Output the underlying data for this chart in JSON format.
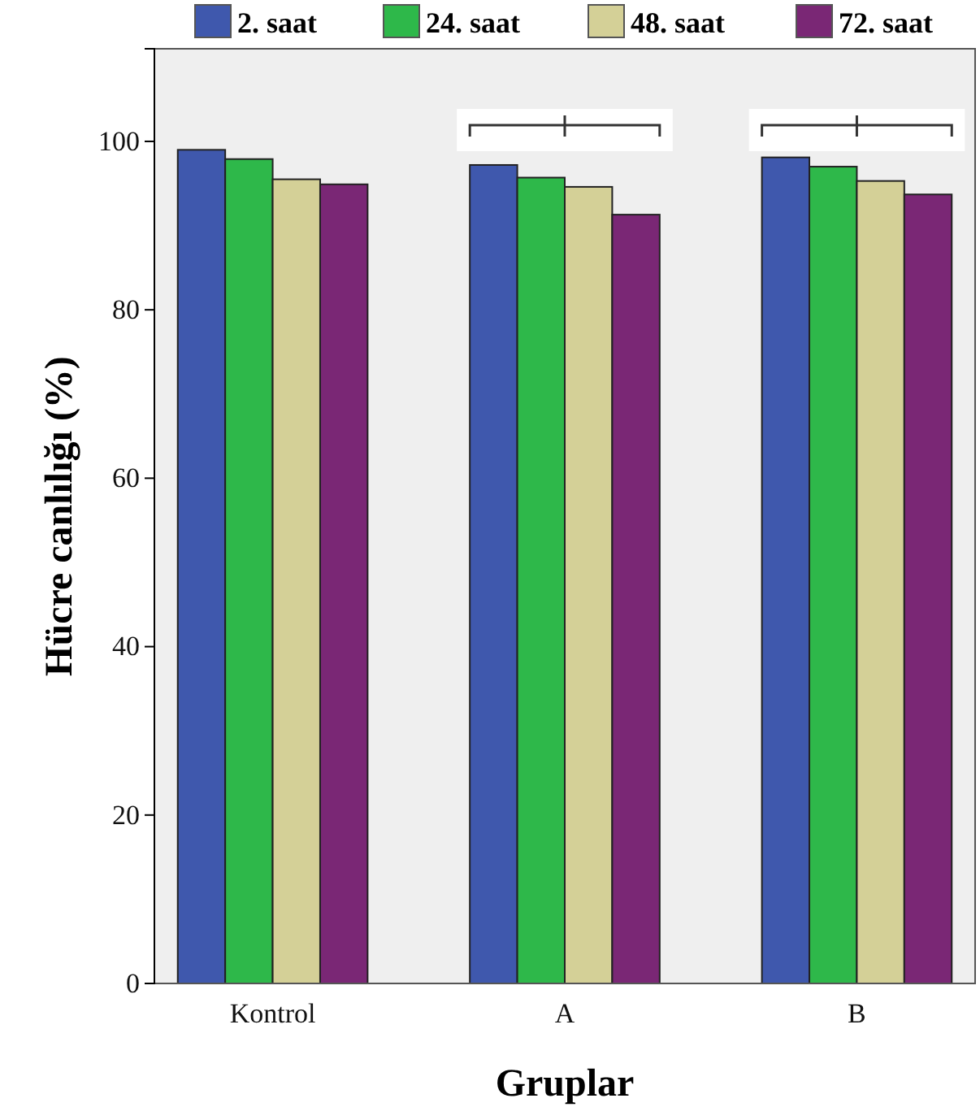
{
  "chart_data": {
    "type": "bar",
    "xlabel": "Gruplar",
    "ylabel": "Hücre canlılığı (%)",
    "categories": [
      "Kontrol",
      "A",
      "B"
    ],
    "series": [
      {
        "name": "2. saat",
        "color": "#3f58ad",
        "values": [
          99.0,
          97.2,
          98.1
        ]
      },
      {
        "name": "24. saat",
        "color": "#2eb84a",
        "values": [
          97.9,
          95.7,
          97.0
        ]
      },
      {
        "name": "48. saat",
        "color": "#d4d097",
        "values": [
          95.5,
          94.6,
          95.3
        ]
      },
      {
        "name": "72. saat",
        "color": "#7a2775",
        "values": [
          94.9,
          91.3,
          93.7
        ]
      }
    ],
    "ylim": [
      0,
      111
    ],
    "yticks": [
      0,
      20,
      40,
      60,
      80,
      100
    ],
    "grid": false,
    "legend": "top"
  }
}
